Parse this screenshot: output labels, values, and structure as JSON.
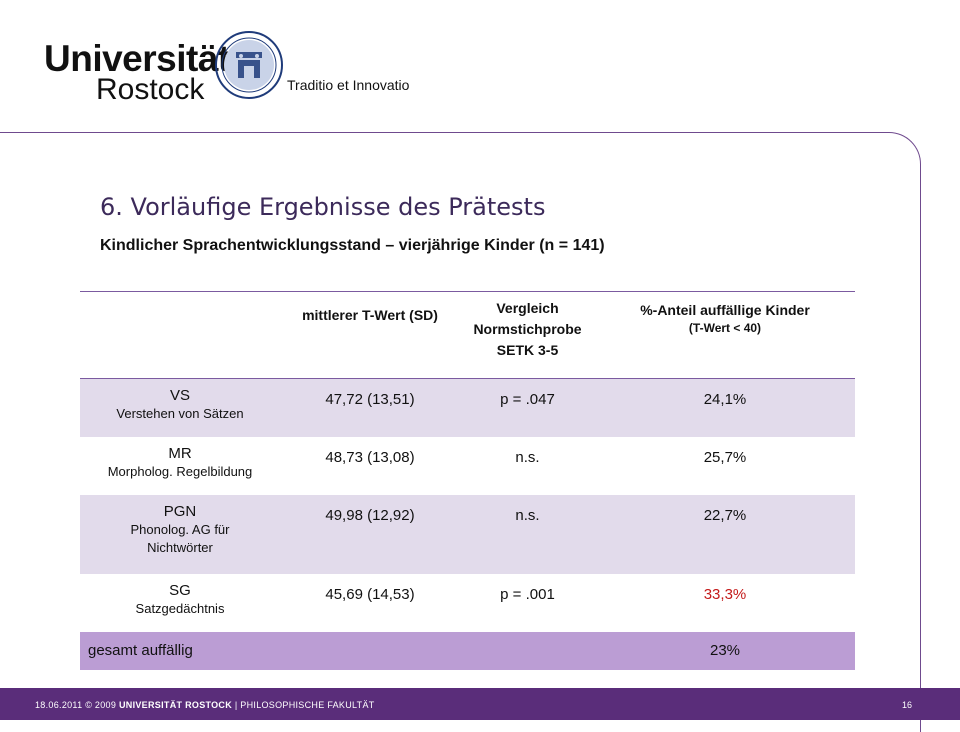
{
  "header": {
    "logo_line1": "Universität",
    "logo_line2": "Rostock",
    "motto": "Traditio et Innovatio"
  },
  "slide": {
    "title": "6. Vorläufige Ergebnisse des Prätests",
    "subtitle": "Kindlicher Sprachentwicklungsstand – vierjährige Kinder (n = 141)"
  },
  "table": {
    "headers": {
      "col1": "mittlerer T-Wert (SD)",
      "col2_line1": "Vergleich",
      "col2_line2": "Normstichprobe",
      "col2_line3": "SETK 3-5",
      "col3_line1": "%-Anteil auffällige Kinder",
      "col3_line2": "(T-Wert < 40)"
    },
    "rows": [
      {
        "code": "VS",
        "desc": "Verstehen von Sätzen",
        "mean": "47,72 (13,51)",
        "compare": "p = .047",
        "percent": "24,1%"
      },
      {
        "code": "MR",
        "desc": "Morpholog. Regelbildung",
        "mean": "48,73 (13,08)",
        "compare": "n.s.",
        "percent": "25,7%"
      },
      {
        "code": "PGN",
        "desc_line1": "Phonolog. AG für",
        "desc_line2": "Nichtwörter",
        "mean": "49,98 (12,92)",
        "compare": "n.s.",
        "percent": "22,7%"
      },
      {
        "code": "SG",
        "desc": "Satzgedächtnis",
        "mean": "45,69 (14,53)",
        "compare": "p = .001",
        "percent": "33,3%"
      }
    ],
    "total": {
      "label": "gesamt auffällig",
      "percent": "23%"
    }
  },
  "footer": {
    "date": "18.06.2011",
    "copyright": "© 2009",
    "university": "UNIVERSITÄT ROSTOCK",
    "separator": "|",
    "faculty": "PHILOSOPHISCHE FAKULTÄT",
    "page_number": "16"
  },
  "colors": {
    "accent": "#5a2d7a",
    "row_shade": "#e2dbeb",
    "total_row": "#bb9dd4",
    "highlight_red": "#c41a1a"
  }
}
